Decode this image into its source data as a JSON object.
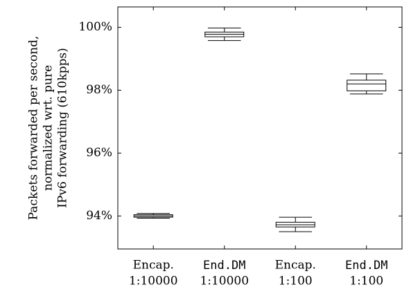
{
  "chart_data": {
    "type": "box",
    "ylabel_lines": [
      "Packets forwarded per second,",
      "normalized wrt. pure",
      "IPv6 forwarding (610kpps)"
    ],
    "categories": [
      {
        "name": "Encap.",
        "name_mono": false,
        "sub": "1:10000"
      },
      {
        "name": "End.DM",
        "name_mono": true,
        "sub": "1:10000"
      },
      {
        "name": "Encap.",
        "name_mono": false,
        "sub": "1:100"
      },
      {
        "name": "End.DM",
        "name_mono": true,
        "sub": "1:100"
      }
    ],
    "boxes": [
      {
        "min": 93.93,
        "q1": 93.96,
        "median": 94.0,
        "q3": 94.04,
        "max": 94.08
      },
      {
        "min": 99.58,
        "q1": 99.7,
        "median": 99.78,
        "q3": 99.85,
        "max": 99.98
      },
      {
        "min": 93.5,
        "q1": 93.65,
        "median": 93.72,
        "q3": 93.8,
        "max": 93.96
      },
      {
        "min": 97.88,
        "q1": 97.98,
        "median": 98.2,
        "q3": 98.32,
        "max": 98.52
      }
    ],
    "yticks": [
      94,
      96,
      98,
      100
    ],
    "ytick_labels": [
      "94%",
      "96%",
      "98%",
      "100%"
    ],
    "ylim": [
      92.95,
      100.65
    ],
    "grid": false
  }
}
